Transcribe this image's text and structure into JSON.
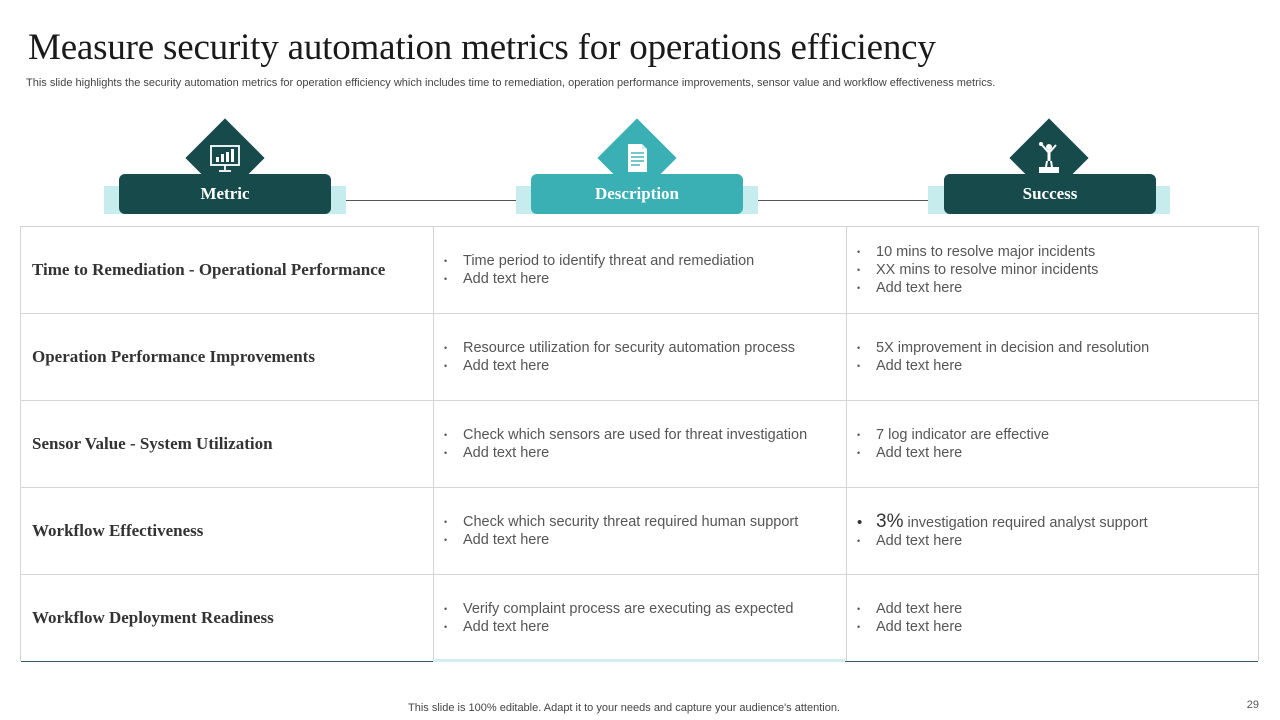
{
  "title": "Measure security automation metrics for operations efficiency",
  "subtitle": "This slide highlights the security automation metrics for operation efficiency which includes time to remediation, operation performance improvements, sensor value and workflow effectiveness metrics.",
  "headers": {
    "metric": {
      "label": "Metric",
      "icon": "presentation-chart-icon"
    },
    "description": {
      "label": "Description",
      "icon": "document-icon"
    },
    "success": {
      "label": "Success",
      "icon": "trophy-winner-icon"
    }
  },
  "rows": [
    {
      "metric": "Time to Remediation - Operational Performance",
      "description": [
        "Time period to identify threat and remediation",
        "Add text here"
      ],
      "success": [
        "10 mins to resolve major incidents",
        "XX mins to resolve minor incidents",
        "Add text here"
      ]
    },
    {
      "metric": "Operation Performance Improvements",
      "description": [
        "Resource utilization for security automation process",
        "Add text here"
      ],
      "success": [
        "5X improvement in decision and resolution",
        "Add text here"
      ]
    },
    {
      "metric": "Sensor Value - System Utilization",
      "description": [
        "Check which sensors are used for threat investigation",
        "Add text here"
      ],
      "success": [
        "7 log indicator are effective",
        "Add text here"
      ]
    },
    {
      "metric": "Workflow Effectiveness",
      "description": [
        "Check which security threat required human support",
        "Add text here"
      ],
      "success_highlight": {
        "value": "3%",
        "text": " investigation required analyst support"
      },
      "success": [
        "Add text here"
      ]
    },
    {
      "metric": "Workflow Deployment Readiness",
      "description": [
        "Verify complaint process are executing as expected",
        "Add text here"
      ],
      "success": [
        "Add text here",
        "Add text here"
      ]
    }
  ],
  "footer": "This slide is 100% editable. Adapt it to your needs and capture your audience's attention.",
  "page_number": "29",
  "colors": {
    "dark_teal": "#174a4b",
    "teal": "#3aafb4",
    "light_teal": "#c7ecee"
  }
}
